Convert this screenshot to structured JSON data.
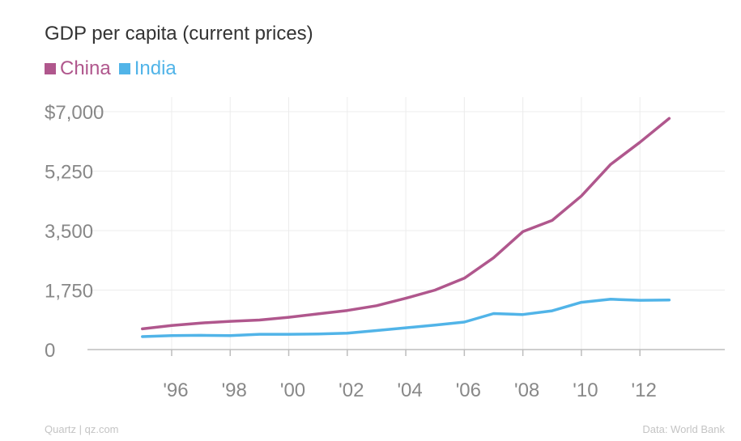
{
  "chart_data": {
    "type": "line",
    "title": "GDP per capita (current prices)",
    "xlabel": "",
    "ylabel": "",
    "x": [
      1995,
      1996,
      1997,
      1998,
      1999,
      2000,
      2001,
      2002,
      2003,
      2004,
      2005,
      2006,
      2007,
      2008,
      2009,
      2010,
      2011,
      2012,
      2013
    ],
    "xlim": [
      1993.4,
      2014.9
    ],
    "ylim": [
      0,
      7000
    ],
    "yticks": [
      0,
      1750,
      3500,
      5250,
      7000
    ],
    "ytick_labels": [
      "0",
      "1,750",
      "3,500",
      "5,250",
      "$7,000"
    ],
    "xticks": [
      1996,
      1998,
      2000,
      2002,
      2004,
      2006,
      2008,
      2010,
      2012
    ],
    "xtick_labels": [
      "'96",
      "'98",
      "'00",
      "'02",
      "'04",
      "'06",
      "'08",
      "'10",
      "'12"
    ],
    "grid": true,
    "legend": "top-left",
    "series": [
      {
        "name": "China",
        "color": "#b0578d",
        "values": [
          610,
          710,
          780,
          830,
          870,
          950,
          1050,
          1150,
          1290,
          1510,
          1750,
          2100,
          2700,
          3470,
          3800,
          4520,
          5450,
          6100,
          6800
        ]
      },
      {
        "name": "India",
        "color": "#51b4e8",
        "values": [
          380,
          410,
          420,
          410,
          450,
          450,
          460,
          480,
          560,
          640,
          720,
          810,
          1060,
          1030,
          1140,
          1390,
          1480,
          1450,
          1460
        ]
      }
    ]
  },
  "footer": {
    "source_left": "Quartz | qz.com",
    "source_right": "Data: World Bank"
  }
}
